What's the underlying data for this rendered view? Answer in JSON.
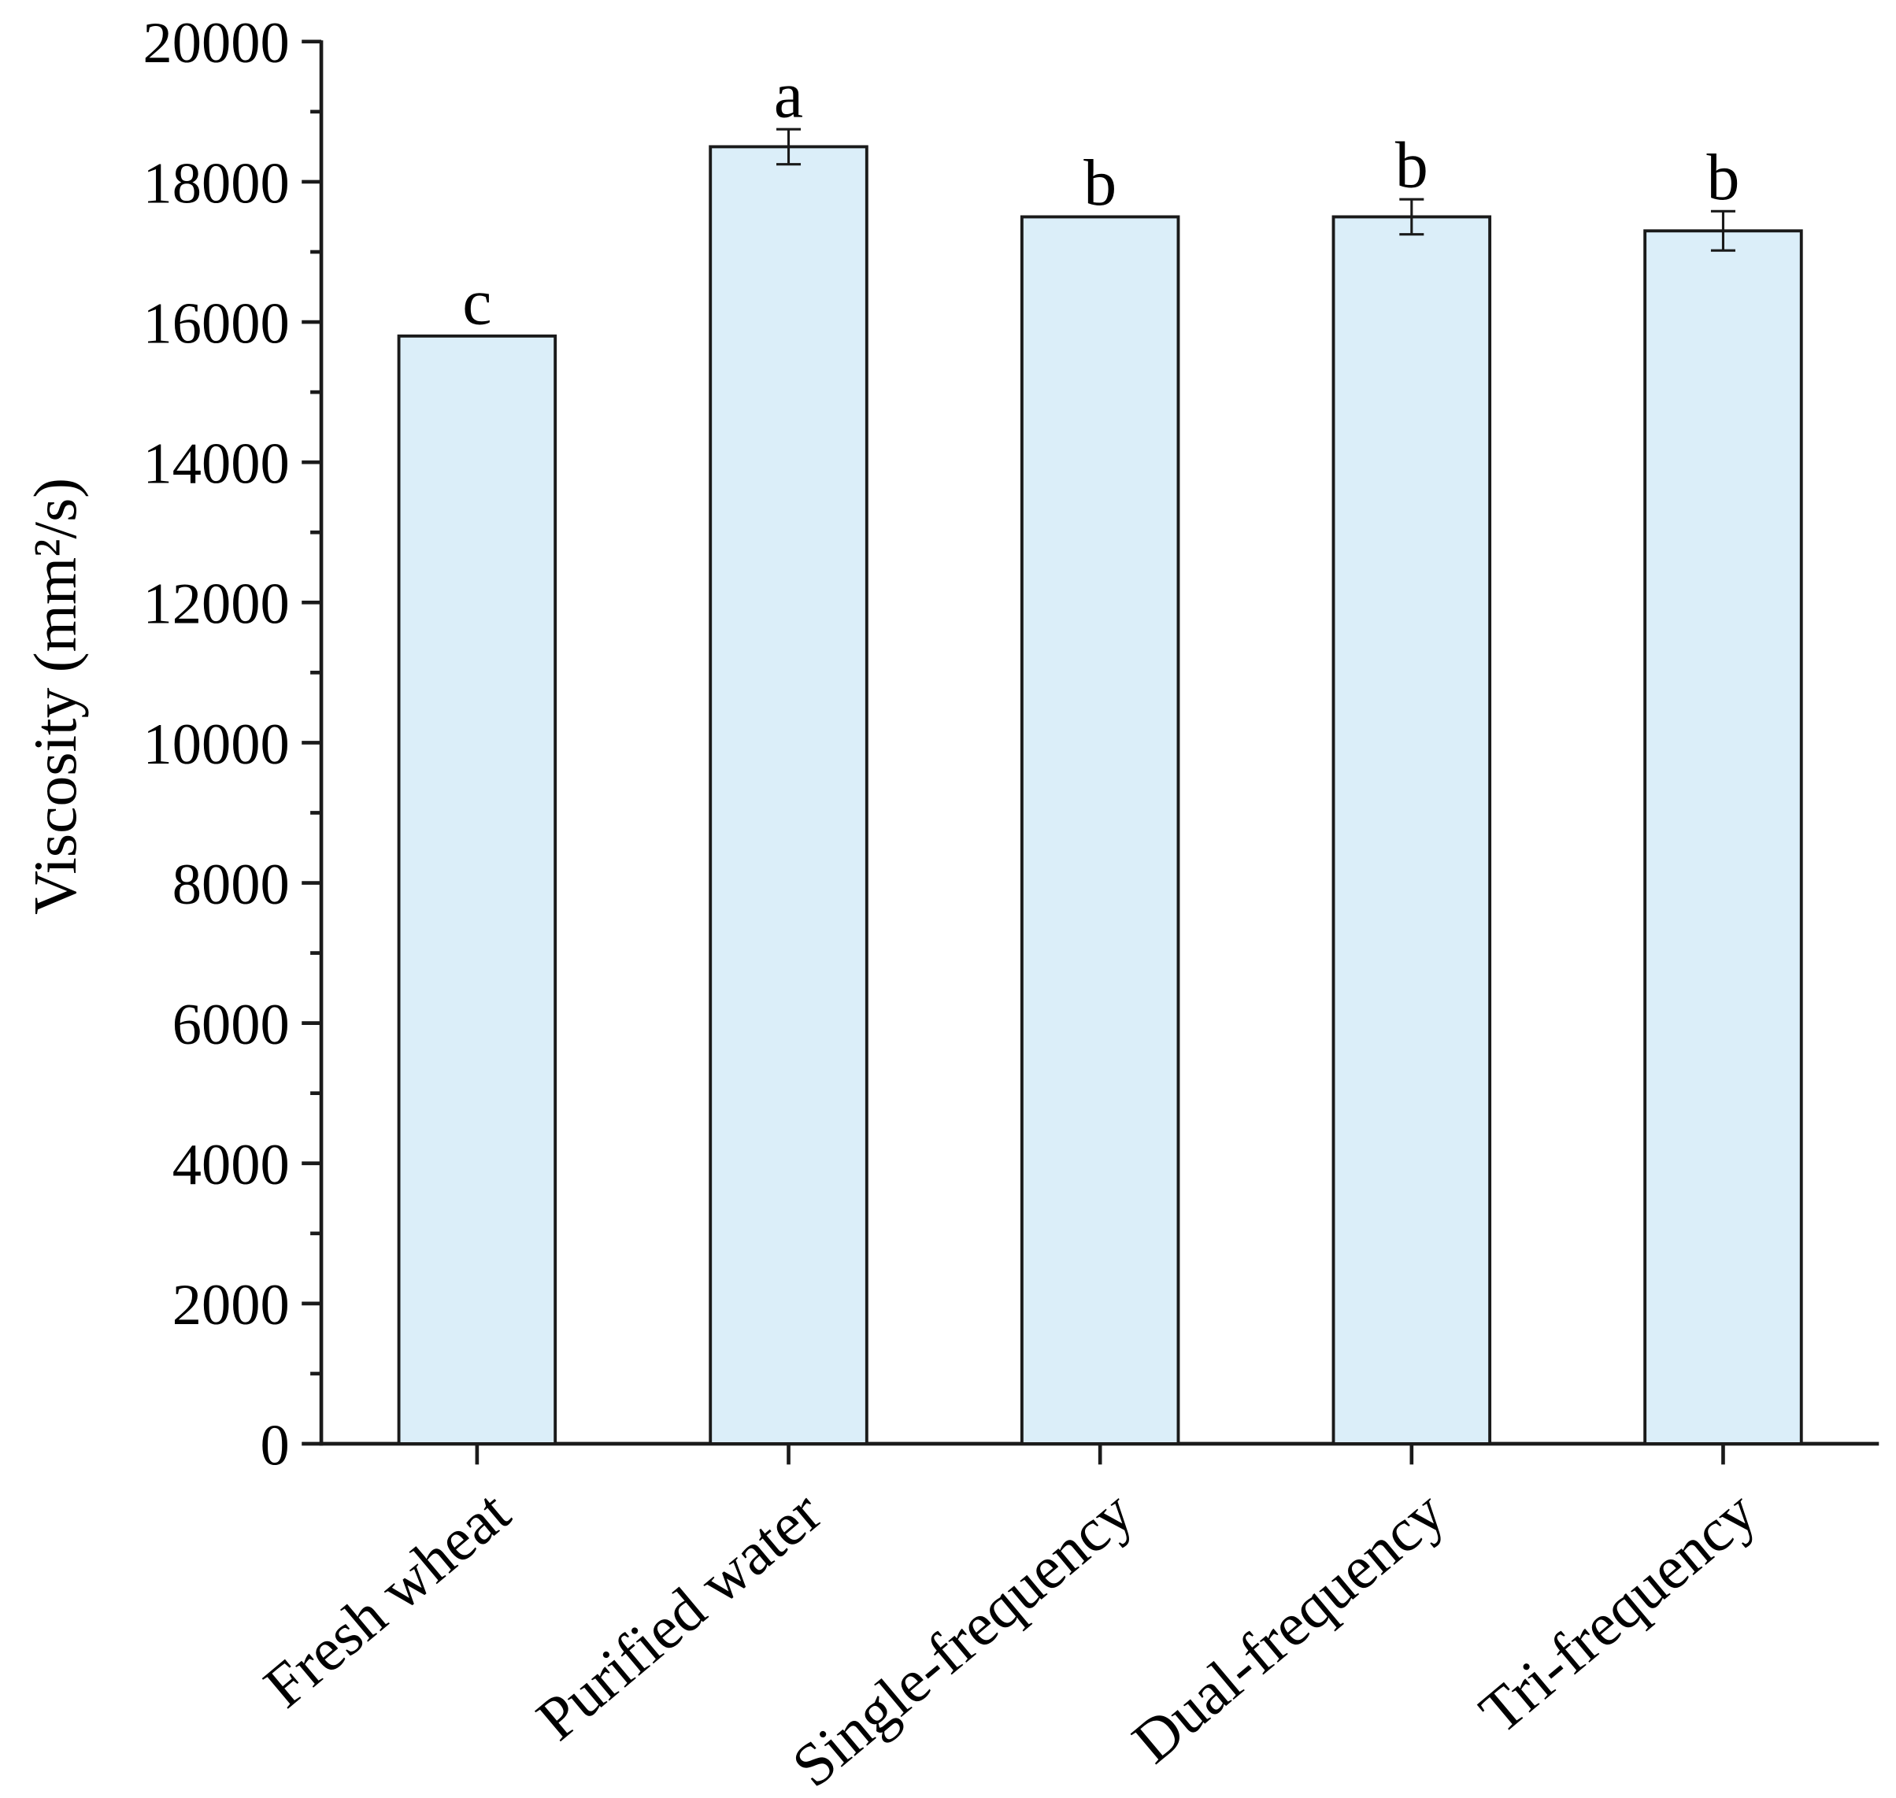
{
  "chart_data": {
    "type": "bar",
    "y_label": "Viscosity (mm²/s)",
    "categories": [
      "Fresh wheat",
      "Purified water",
      "Single-frequency",
      "Dual-frequency",
      "Tri-frequency"
    ],
    "values": [
      15800,
      18500,
      17500,
      17500,
      17300
    ],
    "errors": [
      null,
      250,
      null,
      250,
      280
    ],
    "annotations": [
      "c",
      "a",
      "b",
      "b",
      "b"
    ],
    "color": "#dbeef9",
    "ylim": [
      0,
      20000
    ],
    "yticks": [
      0,
      2000,
      4000,
      6000,
      8000,
      10000,
      12000,
      14000,
      16000,
      18000,
      20000
    ]
  }
}
